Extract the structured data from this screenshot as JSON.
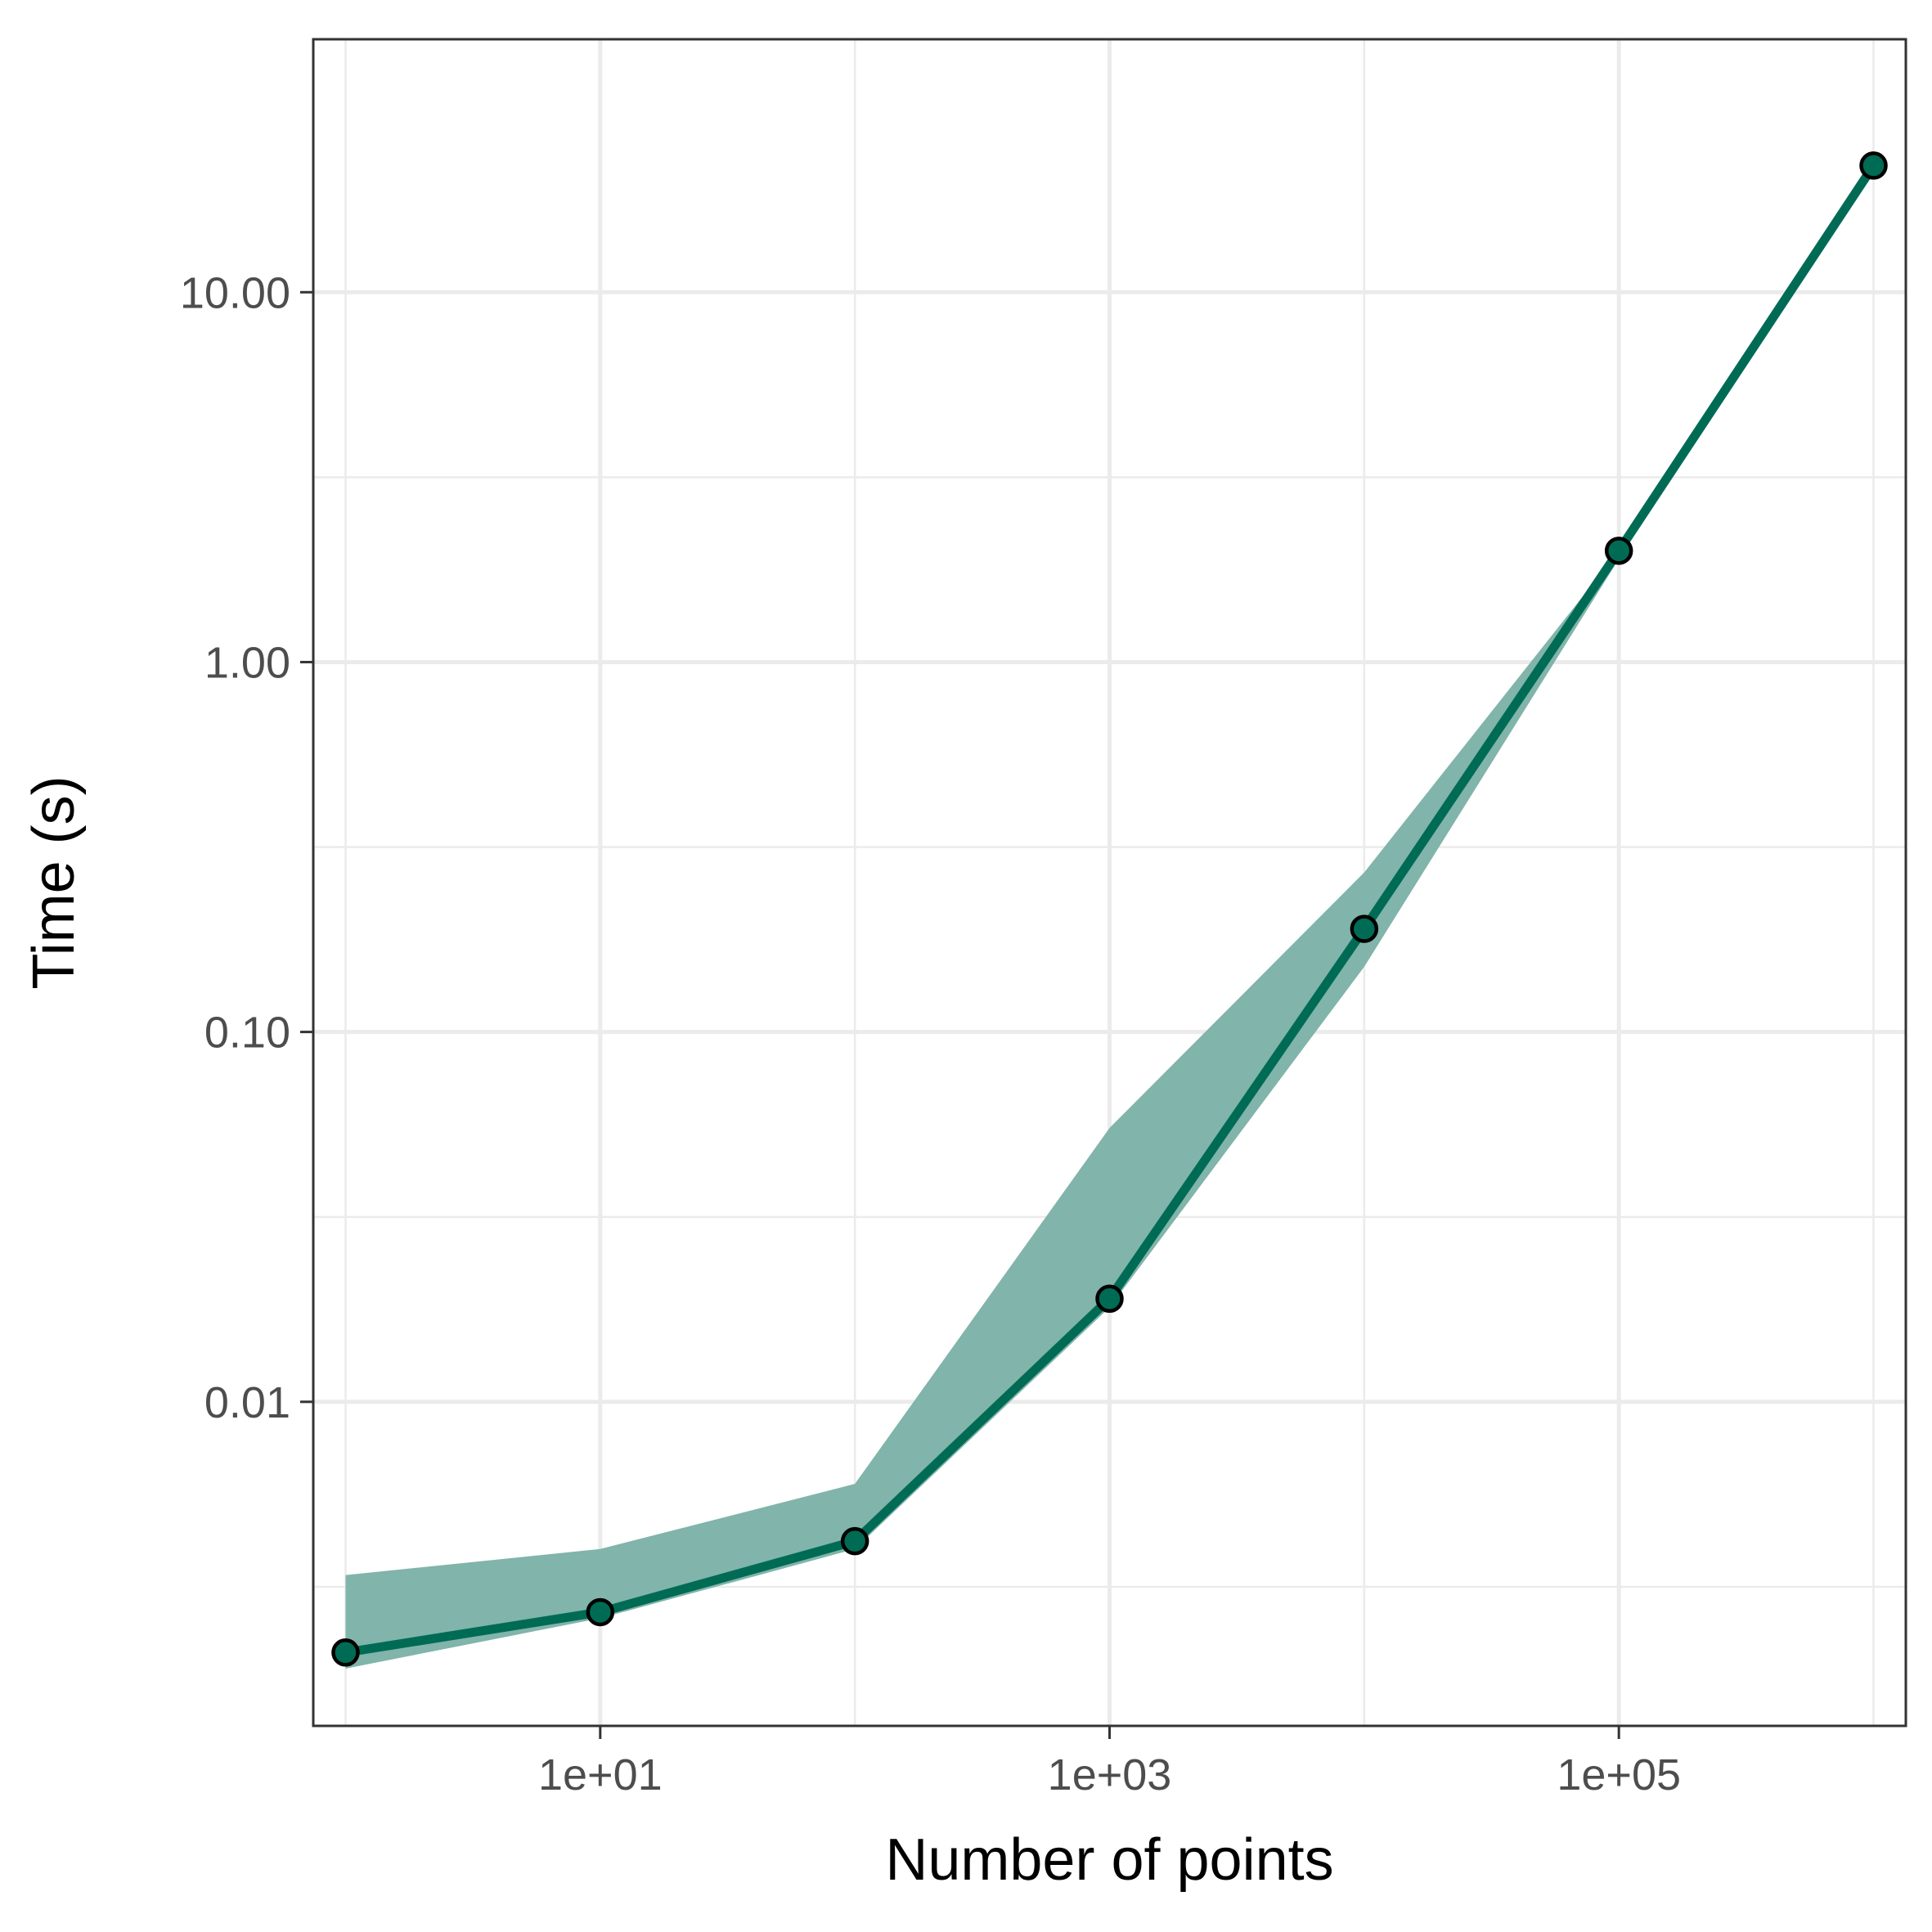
{
  "chart_data": {
    "type": "line",
    "title": "",
    "xlabel": "Number of points",
    "ylabel": "Time (s)",
    "x_scale": "log10",
    "y_scale": "log10",
    "xlim": [
      0.7468,
      1339000
    ],
    "ylim": [
      0.00133,
      48.3
    ],
    "x_ticks": [
      {
        "value": 10,
        "label": "1e+01"
      },
      {
        "value": 1000,
        "label": "1e+03"
      },
      {
        "value": 100000,
        "label": "1e+05"
      }
    ],
    "x_minor_ticks": [
      1,
      100,
      10000,
      1000000
    ],
    "y_ticks": [
      {
        "value": 0.01,
        "label": "0.01"
      },
      {
        "value": 0.1,
        "label": "0.10"
      },
      {
        "value": 1,
        "label": "1.00"
      },
      {
        "value": 10,
        "label": "10.00"
      }
    ],
    "y_minor_ticks": [
      0.00316,
      0.0316,
      0.316,
      3.16
    ],
    "grid": true,
    "legend": "none",
    "series": [
      {
        "x": [
          1,
          10,
          100,
          1000,
          10000,
          100000,
          1000000
        ],
        "y": [
          0.0021,
          0.0027,
          0.0042,
          0.019,
          0.19,
          2.0,
          22.0
        ],
        "lower": [
          0.0019,
          0.0026,
          0.004,
          0.018,
          0.15,
          1.9,
          21.0
        ],
        "upper": [
          0.0034,
          0.004,
          0.006,
          0.055,
          0.27,
          2.0,
          22.0
        ],
        "color": "#006b55",
        "ribbon_color": "#81b4aa",
        "marker": "circle"
      }
    ]
  }
}
